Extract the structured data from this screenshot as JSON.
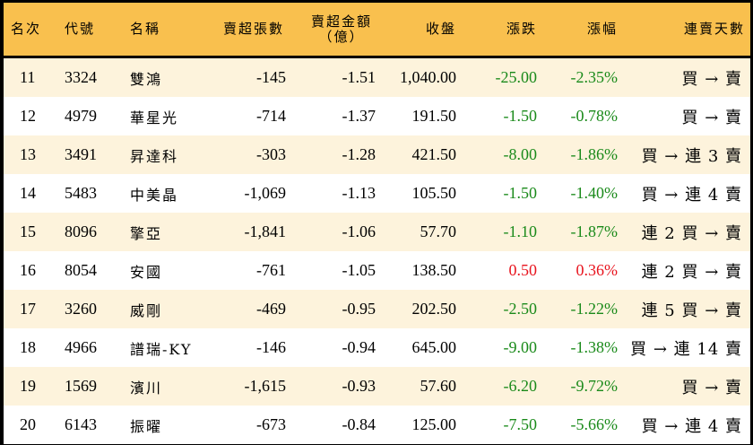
{
  "table": {
    "headers": {
      "rank": "名次",
      "code": "代號",
      "name": "名稱",
      "net_sell_lots": "賣超張數",
      "net_sell_amount_line1": "賣超金額",
      "net_sell_amount_line2": "（億）",
      "close": "收盤",
      "change": "漲跌",
      "change_pct": "漲幅",
      "consecutive_days": "連賣天數"
    },
    "colors": {
      "header_bg": "#F9C04E",
      "row_alt_bg": "#FDF3DC",
      "down": "#1A8A1A",
      "up": "#E8141E"
    },
    "rows": [
      {
        "rank": "11",
        "code": "3324",
        "name": "雙鴻",
        "lots": "-145",
        "amount": "-1.51",
        "close": "1,040.00",
        "change": "-25.00",
        "pct": "-2.35%",
        "days": "買 → 賣",
        "dir": "down"
      },
      {
        "rank": "12",
        "code": "4979",
        "name": "華星光",
        "lots": "-714",
        "amount": "-1.37",
        "close": "191.50",
        "change": "-1.50",
        "pct": "-0.78%",
        "days": "買 → 賣",
        "dir": "down"
      },
      {
        "rank": "13",
        "code": "3491",
        "name": "昇達科",
        "lots": "-303",
        "amount": "-1.28",
        "close": "421.50",
        "change": "-8.00",
        "pct": "-1.86%",
        "days": "買 → 連 3 賣",
        "dir": "down"
      },
      {
        "rank": "14",
        "code": "5483",
        "name": "中美晶",
        "lots": "-1,069",
        "amount": "-1.13",
        "close": "105.50",
        "change": "-1.50",
        "pct": "-1.40%",
        "days": "買 → 連 4 賣",
        "dir": "down"
      },
      {
        "rank": "15",
        "code": "8096",
        "name": "擎亞",
        "lots": "-1,841",
        "amount": "-1.06",
        "close": "57.70",
        "change": "-1.10",
        "pct": "-1.87%",
        "days": "連 2 買 → 賣",
        "dir": "down"
      },
      {
        "rank": "16",
        "code": "8054",
        "name": "安國",
        "lots": "-761",
        "amount": "-1.05",
        "close": "138.50",
        "change": "0.50",
        "pct": "0.36%",
        "days": "連 2 買 → 賣",
        "dir": "up"
      },
      {
        "rank": "17",
        "code": "3260",
        "name": "威剛",
        "lots": "-469",
        "amount": "-0.95",
        "close": "202.50",
        "change": "-2.50",
        "pct": "-1.22%",
        "days": "連 5 買 → 賣",
        "dir": "down"
      },
      {
        "rank": "18",
        "code": "4966",
        "name": "譜瑞-KY",
        "lots": "-146",
        "amount": "-0.94",
        "close": "645.00",
        "change": "-9.00",
        "pct": "-1.38%",
        "days": "買 → 連 14 賣",
        "dir": "down"
      },
      {
        "rank": "19",
        "code": "1569",
        "name": "濱川",
        "lots": "-1,615",
        "amount": "-0.93",
        "close": "57.60",
        "change": "-6.20",
        "pct": "-9.72%",
        "days": "買 → 賣",
        "dir": "down"
      },
      {
        "rank": "20",
        "code": "6143",
        "name": "振曜",
        "lots": "-673",
        "amount": "-0.84",
        "close": "125.00",
        "change": "-7.50",
        "pct": "-5.66%",
        "days": "買 → 連 4 賣",
        "dir": "down"
      }
    ]
  }
}
